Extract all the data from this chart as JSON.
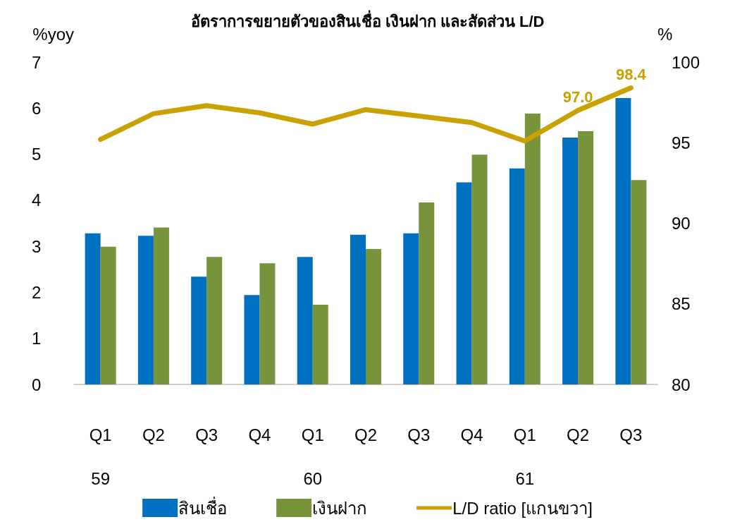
{
  "chart_data": {
    "type": "bar",
    "title": "อัตราการขยายตัวของสินเชื่อ เงินฝาก และสัดส่วน L/D",
    "ylabel": "%yoy",
    "y2label": "%",
    "categories": [
      "Q1\n59",
      "Q2",
      "Q3",
      "Q4",
      "Q1\n60",
      "Q2",
      "Q3",
      "Q4",
      "Q1\n61",
      "Q2",
      "Q3"
    ],
    "series": [
      {
        "name": "สินเชื่อ",
        "color": "#0070c0",
        "values": [
          3.28,
          3.23,
          2.34,
          1.94,
          2.77,
          3.25,
          3.28,
          4.39,
          4.69,
          5.36,
          6.22
        ]
      },
      {
        "name": "เงินฝาก",
        "color": "#77933c",
        "values": [
          2.99,
          3.41,
          2.77,
          2.63,
          1.73,
          2.94,
          3.95,
          4.99,
          5.88,
          5.5,
          4.44
        ]
      },
      {
        "name": "L/D ratio [แกนขวา]",
        "type": "line",
        "axis": "y2",
        "color": "#c9a100",
        "marker": "none",
        "values": [
          95.2,
          96.8,
          97.3,
          96.85,
          96.15,
          97.05,
          96.65,
          96.25,
          95.1,
          97.0,
          98.4
        ],
        "value_labels": [
          null,
          null,
          null,
          null,
          null,
          null,
          null,
          null,
          null,
          "97.0",
          "98.4"
        ]
      }
    ],
    "ylim": [
      0,
      7
    ],
    "yticks": [
      0,
      1,
      2,
      3,
      4,
      5,
      6,
      7
    ],
    "y2lim": [
      80,
      100
    ],
    "y2ticks": [
      80,
      85,
      90,
      95,
      100
    ],
    "grid": false,
    "legend": "bottom"
  }
}
